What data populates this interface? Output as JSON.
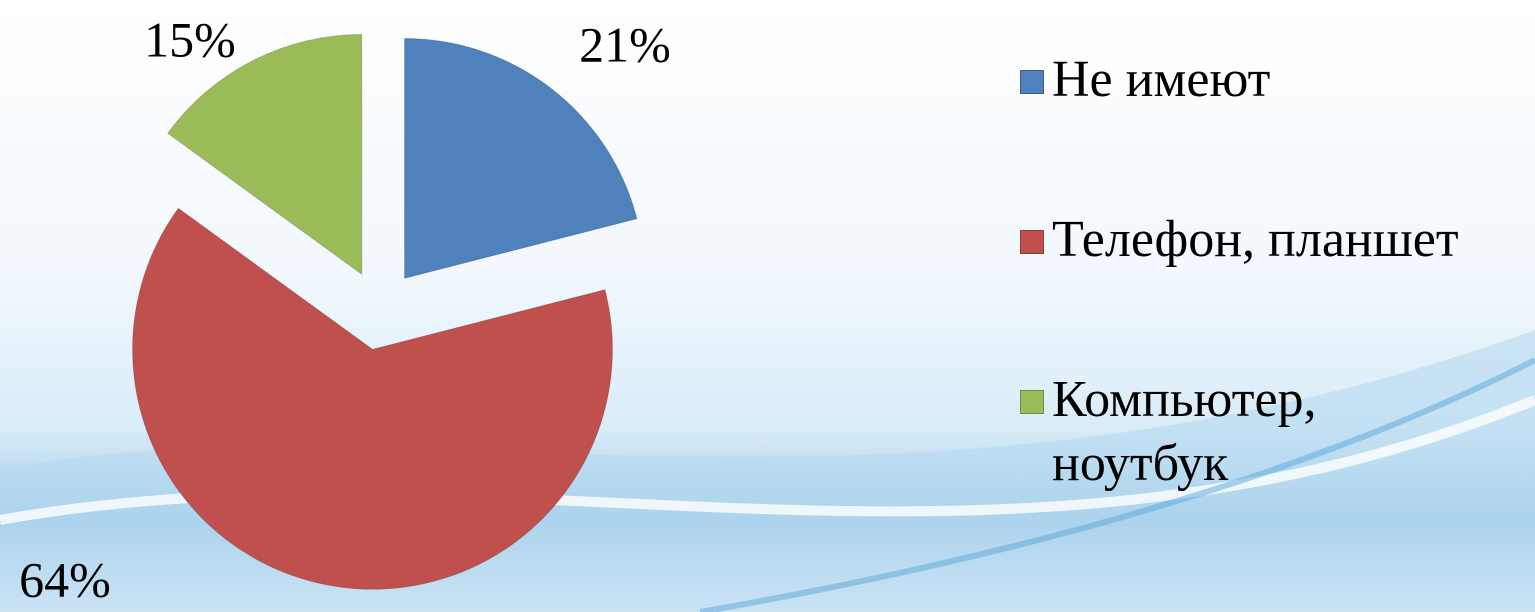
{
  "chart_data": {
    "type": "pie",
    "categories": [
      "Не имеют",
      "Телефон, планшет",
      "Компьютер, ноутбук"
    ],
    "values": [
      21,
      64,
      15
    ],
    "value_labels": [
      "21%",
      "64%",
      "15%"
    ],
    "colors": [
      "#4f81bd",
      "#c0504d",
      "#9bbb59"
    ],
    "legend": "right"
  }
}
